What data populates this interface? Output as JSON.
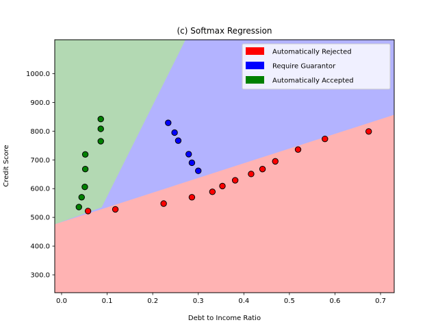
{
  "chart_data": {
    "type": "scatter",
    "title": "(c) Softmax Regression",
    "xlabel": "Debt to Income Ratio",
    "ylabel": "Credit Score",
    "xlim": [
      -0.015,
      0.73
    ],
    "ylim": [
      238,
      1118
    ],
    "xticks": [
      0.0,
      0.1,
      0.2,
      0.3,
      0.4,
      0.5,
      0.6,
      0.7
    ],
    "xtick_labels": [
      "0.0",
      "0.1",
      "0.2",
      "0.3",
      "0.4",
      "0.5",
      "0.6",
      "0.7"
    ],
    "yticks": [
      300,
      400,
      500,
      600,
      700,
      800,
      900,
      1000
    ],
    "ytick_labels": [
      "300.0",
      "400.0",
      "500.0",
      "600.0",
      "700.0",
      "800.0",
      "900.0",
      "1000.0"
    ],
    "legend_position": "upper-right",
    "grid": false,
    "decision_regions": [
      {
        "name": "Automatically Rejected",
        "color": "#ffb3b3",
        "boundary_left": [
          -0.015,
          476
        ],
        "boundary_right": [
          0.73,
          857
        ]
      },
      {
        "name": "Require Guarantor",
        "color": "#b3b3ff"
      },
      {
        "name": "Automatically Accepted",
        "color": "#b3d9b3",
        "boundary_bottom": [
          0.088,
          535
        ],
        "boundary_top": [
          0.272,
          1118
        ]
      }
    ],
    "series": [
      {
        "name": "Automatically Rejected",
        "color": "#ff0000",
        "points": [
          [
            0.058,
            522
          ],
          [
            0.118,
            528
          ],
          [
            0.224,
            548
          ],
          [
            0.286,
            570
          ],
          [
            0.331,
            589
          ],
          [
            0.353,
            609
          ],
          [
            0.381,
            629
          ],
          [
            0.416,
            651
          ],
          [
            0.441,
            668
          ],
          [
            0.469,
            695
          ],
          [
            0.519,
            736
          ],
          [
            0.578,
            773
          ],
          [
            0.674,
            799
          ]
        ]
      },
      {
        "name": "Require Guarantor",
        "color": "#0000ff",
        "points": [
          [
            0.234,
            829
          ],
          [
            0.248,
            795
          ],
          [
            0.256,
            767
          ],
          [
            0.279,
            720
          ],
          [
            0.286,
            690
          ],
          [
            0.3,
            662
          ]
        ]
      },
      {
        "name": "Automatically Accepted",
        "color": "#008000",
        "points": [
          [
            0.038,
            536
          ],
          [
            0.044,
            570
          ],
          [
            0.051,
            606
          ],
          [
            0.052,
            668
          ],
          [
            0.052,
            719
          ],
          [
            0.086,
            765
          ],
          [
            0.086,
            808
          ],
          [
            0.086,
            842
          ]
        ]
      }
    ]
  }
}
